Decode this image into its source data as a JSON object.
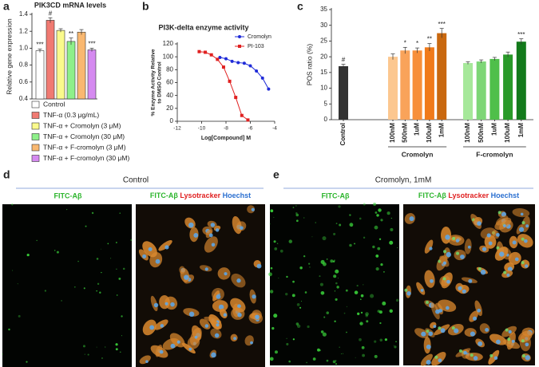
{
  "panel_labels": [
    "a",
    "b",
    "c",
    "d",
    "e"
  ],
  "chart_data": [
    {
      "type": "bar",
      "title": "PIK3CD mRNA levels",
      "y_label": "Relative gene expression",
      "categories": [
        null
      ],
      "ylim": [
        0.4,
        1.4
      ],
      "yticks": [
        0.4,
        0.6,
        0.8,
        {
          "value": 1,
          "label": "1.0"
        },
        1.2,
        1.4
      ],
      "series": [
        {
          "name": "Control",
          "color": "#ffffff",
          "values": [
            0.97
          ],
          "errors": [
            0.02
          ],
          "annotations": [
            "***"
          ]
        },
        {
          "name": "TNF-α (0.3 μg/mL)",
          "color": "#f07a72",
          "values": [
            1.33
          ],
          "errors": [
            0.03
          ],
          "annotations": [
            "#"
          ]
        },
        {
          "name": "TNF-α + Cromolyn (3 μM)",
          "color": "#fafa8c",
          "values": [
            1.21
          ],
          "errors": [
            0.02
          ]
        },
        {
          "name": "TNF-α + Cromolyn (30 μM)",
          "color": "#8ef08a",
          "values": [
            1.08
          ],
          "errors": [
            0.04
          ],
          "annotations": [
            "**"
          ]
        },
        {
          "name": "TNF-α + F-cromolyn (3 μM)",
          "color": "#f9b870",
          "values": [
            1.19
          ],
          "errors": [
            0.03
          ]
        },
        {
          "name": "TNF-α + F-cromolyn (30 μM)",
          "color": "#d58af0",
          "values": [
            0.98
          ],
          "errors": [
            0.02
          ],
          "annotations": [
            "***"
          ]
        }
      ]
    },
    {
      "type": "line",
      "title": "PI3K-delta enzyme activity",
      "y_label": [
        "% Enzyme Activity Relative",
        "to DMSO Control"
      ],
      "x_label": "Log[Compound] M",
      "xlim": [
        -12,
        -4
      ],
      "xticks": [
        -12,
        -10,
        -8,
        -6,
        -4
      ],
      "ylim": [
        0,
        120
      ],
      "yticks": [
        0,
        20,
        40,
        60,
        80,
        100,
        120
      ],
      "legend": "top-right",
      "series": [
        {
          "name": "Cromolyn",
          "color": "#1f2bd8",
          "marker": "circle",
          "x": [
            -8.5,
            -8,
            -7.5,
            -7,
            -6.5,
            -6,
            -5.5,
            -5,
            -4.5
          ],
          "y": [
            99,
            97,
            93,
            91,
            90,
            86,
            78,
            67,
            50
          ]
        },
        {
          "name": "PI-103",
          "color": "#e02020",
          "marker": "square",
          "x": [
            -10.2,
            -9.7,
            -9.2,
            -8.7,
            -8.2,
            -7.7,
            -7.2,
            -6.7,
            -6.2
          ],
          "y": [
            108,
            107,
            103,
            96,
            84,
            62,
            37,
            9,
            2
          ]
        }
      ]
    },
    {
      "type": "bar",
      "y_label": "POS ratio (%)",
      "categories": [
        "Control",
        "100nM",
        "500nM",
        "1uM",
        "100uM",
        "1mM",
        "100nM",
        "500nM",
        "1uM",
        "100uM",
        "1mM"
      ],
      "values": [
        17,
        20,
        22,
        22,
        23,
        27.5,
        18,
        18.5,
        19.3,
        20.7,
        24.8
      ],
      "errors": [
        0.6,
        0.9,
        1,
        0.8,
        1.2,
        1.5,
        0.4,
        0.5,
        0.5,
        0.8,
        0.9
      ],
      "annotations": [
        "#",
        null,
        "*",
        "*",
        "**",
        "***",
        null,
        null,
        null,
        null,
        "***"
      ],
      "colors": [
        "#333333",
        "#fcc78f",
        "#f9a35a",
        "#f78f3a",
        "#f07a1a",
        "#c9680f",
        "#a6e89a",
        "#7dd676",
        "#4fbf4a",
        "#2a9a2a",
        "#137a1b"
      ],
      "groups": [
        "Cromolyn",
        "F-cromolyn"
      ],
      "ylim": [
        0,
        35
      ],
      "yticks": [
        0,
        5,
        10,
        15,
        20,
        25,
        30,
        35
      ]
    }
  ],
  "images": {
    "d": {
      "heading": "Control",
      "left_label": "FITC-Aβ",
      "right_labels": [
        "FITC-Aβ",
        "Lysotracker",
        "Hoechst"
      ]
    },
    "e": {
      "heading": "Cromolyn, 1mM",
      "left_label": "FITC-Aβ",
      "right_labels": [
        "FITC-Aβ",
        "Lysotracker",
        "Hoechst"
      ]
    }
  }
}
